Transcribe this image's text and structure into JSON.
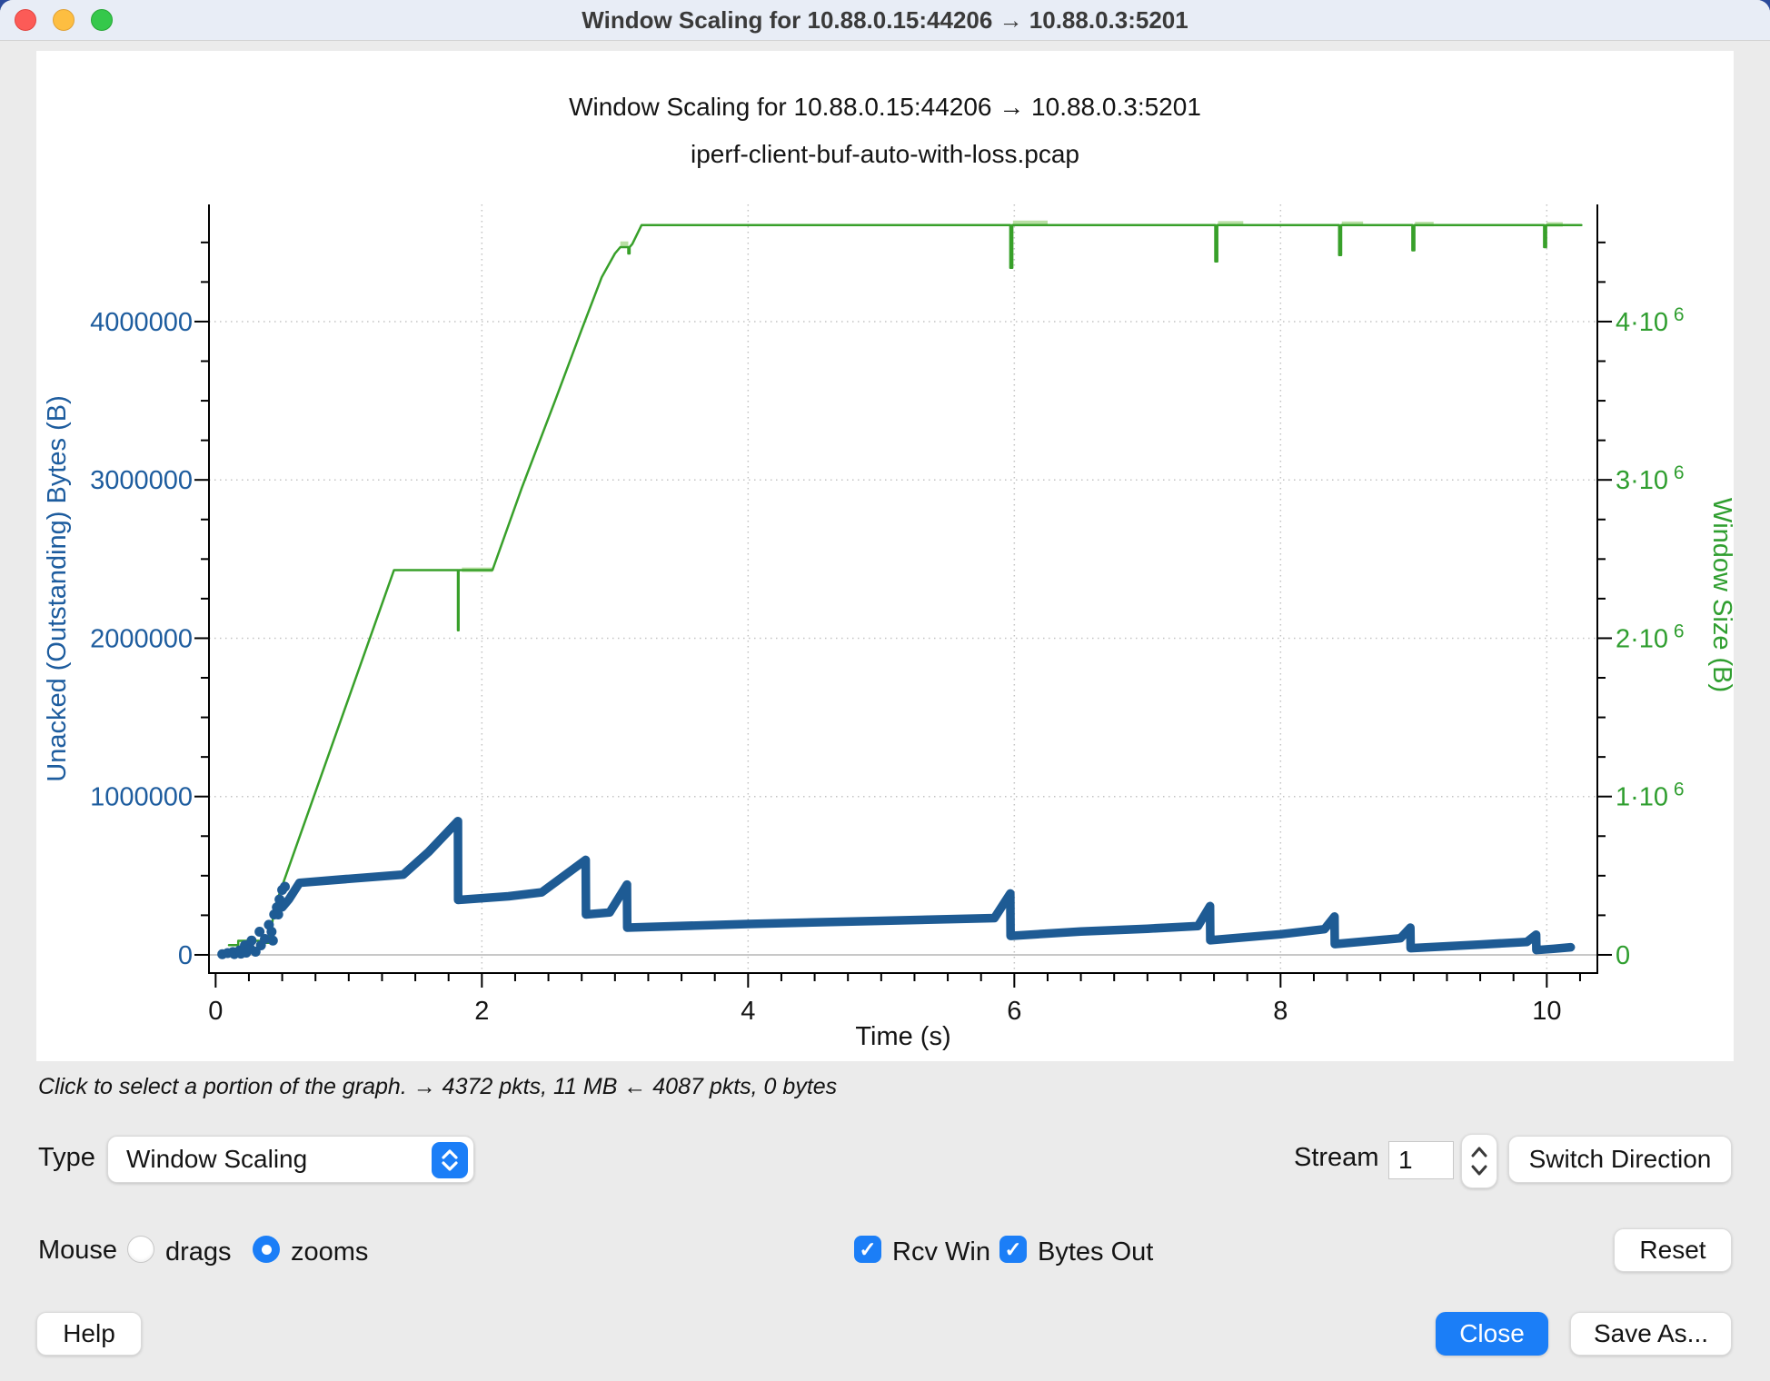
{
  "window": {
    "title": "Window Scaling for 10.88.0.15:44206 → 10.88.0.3:5201"
  },
  "chart": {
    "title": "Window Scaling for 10.88.0.15:44206 → 10.88.0.3:5201",
    "subtitle": "iperf-client-buf-auto-with-loss.pcap"
  },
  "status_text": "Click to select a portion of the graph. → 4372 pkts, 11 MB ← 4087 pkts, 0 bytes",
  "controls": {
    "type_label": "Type",
    "type_value": "Window Scaling",
    "stream_label": "Stream",
    "stream_value": "1",
    "switch_direction_label": "Switch Direction",
    "mouse_label": "Mouse",
    "drags_label": "drags",
    "zooms_label": "zooms",
    "rcv_win_label": "Rcv Win",
    "bytes_out_label": "Bytes Out",
    "reset_label": "Reset",
    "help_label": "Help",
    "close_label": "Close",
    "save_as_label": "Save As..."
  },
  "colors": {
    "accent_blue": "#1b7ef7",
    "series_green": "#38a02a",
    "series_blue": "#1e5b94",
    "left_axis_text": "#1d5c9e",
    "right_axis_text": "#2f9e2f",
    "titlebar_bg": "#e8edf6",
    "window_bg": "#ebebeb"
  },
  "chart_data": {
    "type": "line",
    "x_axis": {
      "label": "Time (s)",
      "ticks": [
        0,
        2,
        4,
        6,
        8,
        10
      ],
      "minor_step": 0.25,
      "range": [
        -0.05,
        10.38
      ],
      "grid": "dotted"
    },
    "y_axis_left": {
      "label": "Unacked (Outstanding) Bytes (B)",
      "color": "#1d5c9e",
      "ticks": [
        0,
        1000000,
        2000000,
        3000000,
        4000000
      ],
      "minor_step": 250000,
      "range": [
        -115000,
        4740000
      ]
    },
    "y_axis_right": {
      "label": "Window Size (B)",
      "color": "#2f9e2f",
      "ticks": [
        0,
        1000000,
        2000000,
        3000000,
        4000000
      ],
      "labels": [
        "0",
        "1·10^6",
        "2·10^6",
        "3·10^6",
        "4·10^6"
      ]
    },
    "series": [
      {
        "name": "Rcv Win",
        "color": "#38a02a",
        "width": 2.5,
        "points": [
          [
            0.1,
            62000
          ],
          [
            0.17,
            62000
          ],
          [
            0.17,
            89000
          ],
          [
            0.33,
            89000
          ],
          [
            0.33,
            76000
          ],
          [
            0.4,
            76000
          ],
          [
            0.4,
            105000
          ],
          [
            0.42,
            170000
          ],
          [
            0.43,
            230000
          ],
          [
            0.45,
            310000
          ],
          [
            0.46,
            340000
          ],
          [
            1.34,
            2430000
          ],
          [
            1.82,
            2430000
          ],
          [
            1.82,
            2050000
          ],
          [
            1.825,
            2050000
          ],
          [
            1.825,
            2430000
          ],
          [
            2.08,
            2430000
          ],
          [
            2.3,
            2950000
          ],
          [
            2.55,
            3500000
          ],
          [
            2.75,
            3950000
          ],
          [
            2.9,
            4280000
          ],
          [
            3.0,
            4430000
          ],
          [
            3.04,
            4470000
          ],
          [
            3.1,
            4470000
          ],
          [
            3.1,
            4430000
          ],
          [
            3.11,
            4430000
          ],
          [
            3.11,
            4470000
          ],
          [
            3.13,
            4490000
          ],
          [
            3.2,
            4610000
          ],
          [
            5.97,
            4610000
          ],
          [
            5.97,
            4340000
          ],
          [
            5.985,
            4340000
          ],
          [
            5.985,
            4610000
          ],
          [
            7.51,
            4610000
          ],
          [
            7.51,
            4380000
          ],
          [
            7.525,
            4380000
          ],
          [
            7.525,
            4610000
          ],
          [
            8.44,
            4610000
          ],
          [
            8.44,
            4420000
          ],
          [
            8.455,
            4420000
          ],
          [
            8.455,
            4610000
          ],
          [
            8.99,
            4610000
          ],
          [
            8.99,
            4450000
          ],
          [
            9.005,
            4450000
          ],
          [
            9.005,
            4610000
          ],
          [
            9.98,
            4610000
          ],
          [
            9.98,
            4470000
          ],
          [
            9.995,
            4470000
          ],
          [
            9.995,
            4610000
          ],
          [
            10.26,
            4610000
          ]
        ],
        "highlight_color": "#b9dfa4",
        "highlight_segments": [
          [
            1.85,
            2.08,
            2432000
          ],
          [
            3.04,
            3.1,
            4492000
          ],
          [
            5.99,
            6.25,
            4624000
          ],
          [
            7.53,
            7.72,
            4620000
          ],
          [
            8.46,
            8.62,
            4618000
          ],
          [
            9.01,
            9.15,
            4616000
          ],
          [
            10.0,
            10.12,
            4614000
          ]
        ]
      },
      {
        "name": "Bytes Out",
        "color": "#1e5b94",
        "width": 9.5,
        "points": [
          [
            0.5,
            300000
          ],
          [
            0.55,
            350000
          ],
          [
            0.63,
            455000
          ],
          [
            1.0,
            480000
          ],
          [
            1.41,
            507000
          ],
          [
            1.6,
            650000
          ],
          [
            1.82,
            845000
          ],
          [
            1.822,
            347000
          ],
          [
            2.2,
            370000
          ],
          [
            2.45,
            395000
          ],
          [
            2.78,
            600000
          ],
          [
            2.782,
            255000
          ],
          [
            2.96,
            268000
          ],
          [
            3.09,
            444000
          ],
          [
            3.092,
            172000
          ],
          [
            4.0,
            195000
          ],
          [
            5.0,
            215000
          ],
          [
            5.85,
            232000
          ],
          [
            5.97,
            388000
          ],
          [
            5.972,
            120000
          ],
          [
            6.5,
            148000
          ],
          [
            7.0,
            165000
          ],
          [
            7.38,
            182000
          ],
          [
            7.47,
            308000
          ],
          [
            7.472,
            92000
          ],
          [
            8.0,
            130000
          ],
          [
            8.33,
            162000
          ],
          [
            8.405,
            242000
          ],
          [
            8.407,
            68000
          ],
          [
            8.9,
            105000
          ],
          [
            8.975,
            172000
          ],
          [
            8.977,
            42000
          ],
          [
            9.5,
            65000
          ],
          [
            9.85,
            82000
          ],
          [
            9.92,
            128000
          ],
          [
            9.922,
            30000
          ],
          [
            10.05,
            38000
          ],
          [
            10.18,
            48000
          ]
        ],
        "dots": [
          [
            0.05,
            4000
          ],
          [
            0.09,
            11000
          ],
          [
            0.13,
            18000
          ],
          [
            0.14,
            5000
          ],
          [
            0.18,
            28000
          ],
          [
            0.19,
            8000
          ],
          [
            0.22,
            60000
          ],
          [
            0.23,
            14000
          ],
          [
            0.26,
            40000
          ],
          [
            0.27,
            90000
          ],
          [
            0.3,
            20000
          ],
          [
            0.33,
            146000
          ],
          [
            0.34,
            60000
          ],
          [
            0.37,
            100000
          ],
          [
            0.4,
            190000
          ],
          [
            0.42,
            146000
          ],
          [
            0.43,
            90000
          ],
          [
            0.44,
            255000
          ],
          [
            0.46,
            300000
          ],
          [
            0.47,
            255000
          ],
          [
            0.48,
            350000
          ],
          [
            0.5,
            410000
          ],
          [
            0.52,
            430000
          ]
        ]
      }
    ]
  }
}
